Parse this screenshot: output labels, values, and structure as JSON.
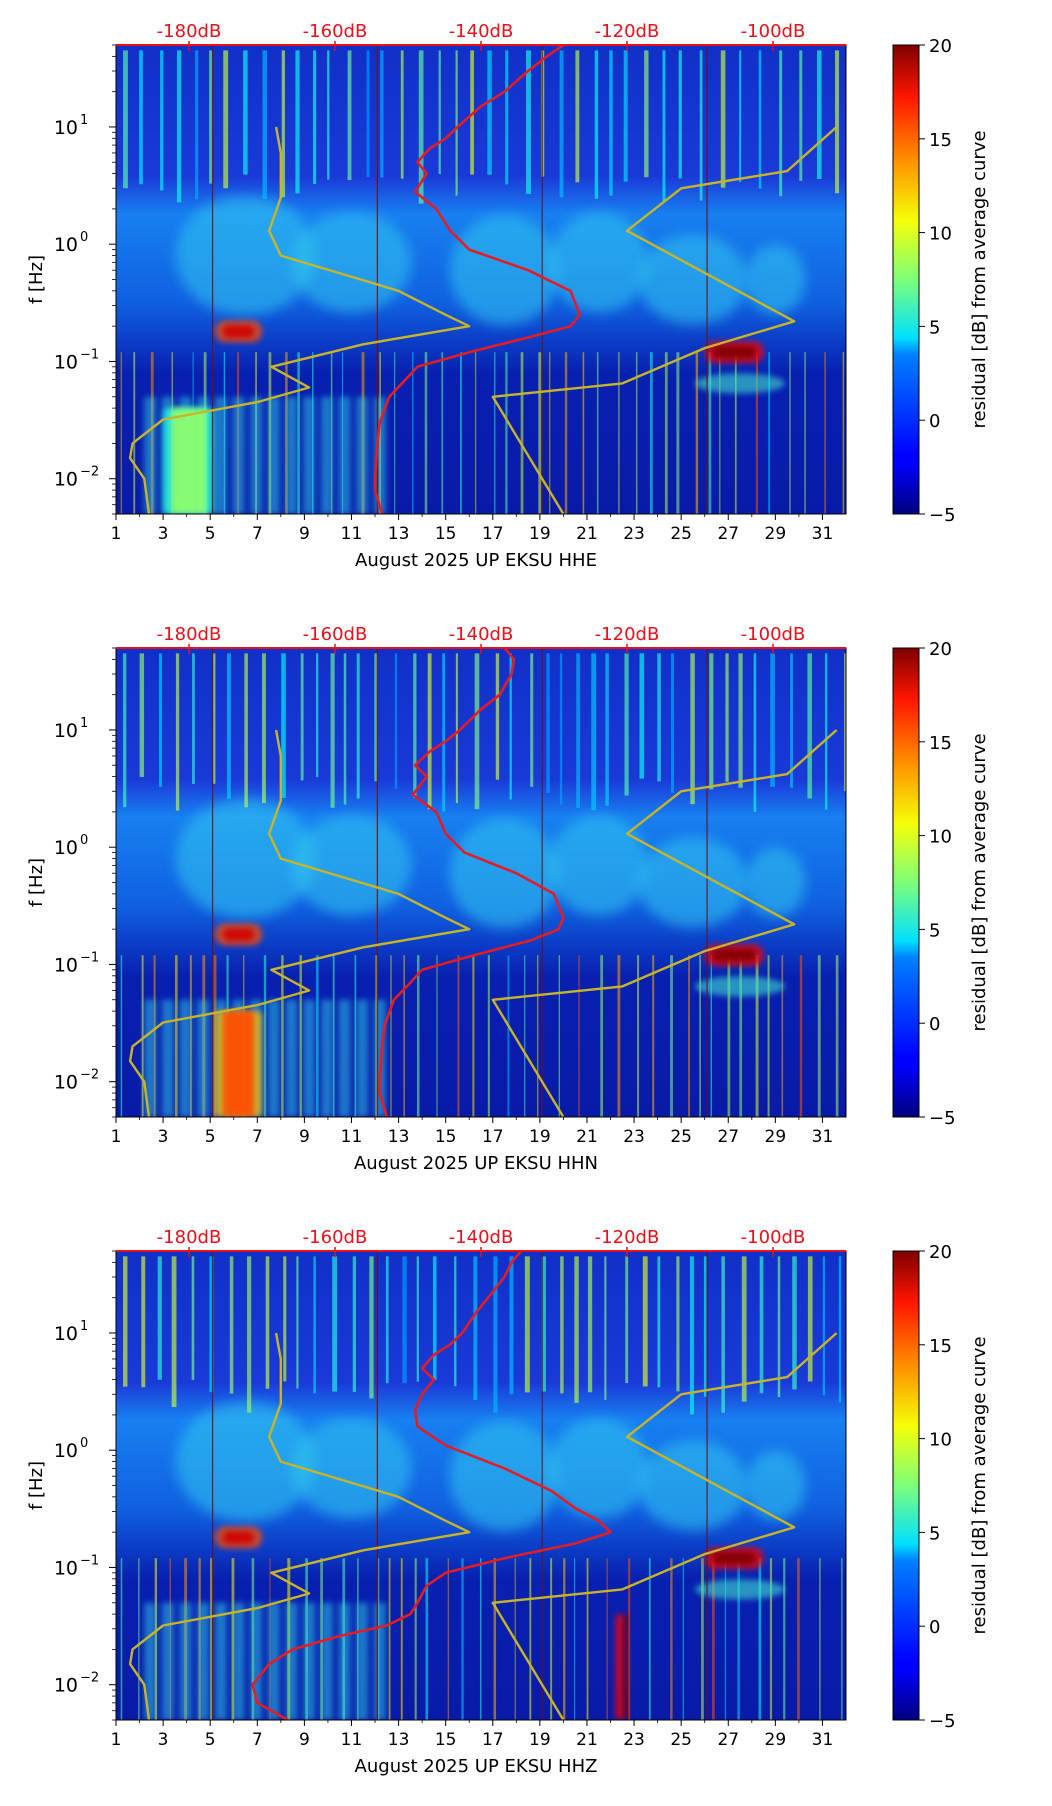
{
  "figure": {
    "colorbar": {
      "label": "residual [dB] from average curve",
      "ticks": [
        "20",
        "15",
        "10",
        "5",
        "0",
        "−5"
      ],
      "tick_values": [
        20,
        15,
        10,
        5,
        0,
        -5
      ],
      "range": [
        -5,
        20
      ],
      "colormap": "jet"
    },
    "y_axis": {
      "label": "f [Hz]",
      "scale": "log",
      "range": [
        0.005,
        50
      ],
      "ticks": [
        {
          "base": "10",
          "exp": "1",
          "value": 10
        },
        {
          "base": "10",
          "exp": "0",
          "value": 1
        },
        {
          "base": "10",
          "exp": "−1",
          "value": 0.1
        },
        {
          "base": "10",
          "exp": "−2",
          "value": 0.01
        }
      ]
    },
    "x_axis": {
      "range": [
        1,
        32
      ],
      "tick_labels": [
        "1",
        "3",
        "5",
        "7",
        "9",
        "11",
        "13",
        "15",
        "17",
        "19",
        "21",
        "23",
        "25",
        "27",
        "29",
        "31"
      ],
      "tick_values": [
        1,
        3,
        5,
        7,
        9,
        11,
        13,
        15,
        17,
        19,
        21,
        23,
        25,
        27,
        29,
        31
      ]
    },
    "top_axis": {
      "color": "#e8101a",
      "labels": [
        "-180dB",
        "-160dB",
        "-140dB",
        "-120dB",
        "-100dB"
      ],
      "label_positions_day": [
        4.1,
        10.3,
        16.5,
        22.7,
        28.9
      ]
    }
  },
  "chart_data": [
    {
      "type": "heatmap",
      "channel": "HHE",
      "xlabel": "August 2025 UP EKSU  HHE",
      "ylabel": "f [Hz]",
      "yscale": "log",
      "xlim": [
        1,
        32
      ],
      "ylim": [
        0.005,
        50
      ],
      "colorbar_range": [
        -5,
        20
      ],
      "notable_features": [
        {
          "x_day": [
            5.2,
            7.2
          ],
          "f_hz": 0.18,
          "residual_db": 18
        },
        {
          "x_day": [
            26.0,
            28.5
          ],
          "f_hz": 0.12,
          "residual_db": 20
        },
        {
          "x_day": [
            3.0,
            5.2
          ],
          "f_hz": 0.01,
          "residual_db": 8
        }
      ],
      "series": [
        {
          "name": "red dB curve (top axis)",
          "color": "#e51c23",
          "points": [
            [
              12.3,
              0.005
            ],
            [
              12.0,
              0.008
            ],
            [
              12.0,
              0.01
            ],
            [
              12.1,
              0.02
            ],
            [
              12.2,
              0.03
            ],
            [
              12.6,
              0.05
            ],
            [
              13.3,
              0.07
            ],
            [
              13.8,
              0.09
            ],
            [
              16.0,
              0.12
            ],
            [
              18.5,
              0.16
            ],
            [
              20.3,
              0.2
            ],
            [
              20.7,
              0.25
            ],
            [
              20.3,
              0.4
            ],
            [
              18.5,
              0.6
            ],
            [
              16.0,
              0.9
            ],
            [
              15.2,
              1.3
            ],
            [
              14.6,
              2.0
            ],
            [
              13.7,
              2.8
            ],
            [
              14.2,
              4.0
            ],
            [
              13.8,
              5.0
            ],
            [
              14.3,
              6.5
            ],
            [
              15.0,
              8.0
            ],
            [
              15.5,
              10.0
            ],
            [
              16.5,
              15.0
            ],
            [
              17.5,
              20.0
            ],
            [
              18.5,
              30.0
            ],
            [
              19.3,
              40.0
            ],
            [
              20.0,
              50.0
            ]
          ]
        },
        {
          "name": "yellow reference curve 1",
          "color": "#c8b428",
          "points": [
            [
              2.4,
              0.005
            ],
            [
              2.2,
              0.01
            ],
            [
              1.6,
              0.015
            ],
            [
              1.7,
              0.02
            ],
            [
              3.0,
              0.032
            ],
            [
              7.0,
              0.045
            ],
            [
              9.2,
              0.06
            ],
            [
              7.6,
              0.09
            ],
            [
              11.5,
              0.14
            ],
            [
              16.0,
              0.2
            ],
            [
              15.0,
              0.25
            ],
            [
              13.0,
              0.4
            ],
            [
              8.0,
              0.8
            ],
            [
              7.5,
              1.3
            ],
            [
              8.0,
              2.5
            ],
            [
              8.0,
              6.0
            ],
            [
              7.8,
              10.0
            ]
          ]
        },
        {
          "name": "yellow reference curve 2",
          "color": "#c8b428",
          "points": [
            [
              20.0,
              0.005
            ],
            [
              17.0,
              0.05
            ],
            [
              22.5,
              0.065
            ],
            [
              26.0,
              0.13
            ],
            [
              29.8,
              0.22
            ],
            [
              22.7,
              1.3
            ],
            [
              25.0,
              3.0
            ],
            [
              29.5,
              4.2
            ],
            [
              31.6,
              10.0
            ]
          ]
        }
      ]
    },
    {
      "type": "heatmap",
      "channel": "HHN",
      "xlabel": "August 2025 UP EKSU  HHN",
      "ylabel": "f [Hz]",
      "yscale": "log",
      "xlim": [
        1,
        32
      ],
      "ylim": [
        0.005,
        50
      ],
      "colorbar_range": [
        -5,
        20
      ],
      "notable_features": [
        {
          "x_day": [
            5.2,
            7.2
          ],
          "f_hz": 0.18,
          "residual_db": 18
        },
        {
          "x_day": [
            26.0,
            28.5
          ],
          "f_hz": 0.12,
          "residual_db": 20
        },
        {
          "x_day": [
            5.2,
            7.2
          ],
          "f_hz": 0.015,
          "residual_db": 15
        }
      ],
      "series": [
        {
          "name": "red dB curve (top axis)",
          "color": "#e51c23",
          "points": [
            [
              12.5,
              0.005
            ],
            [
              12.2,
              0.008
            ],
            [
              12.2,
              0.01
            ],
            [
              12.3,
              0.02
            ],
            [
              12.4,
              0.03
            ],
            [
              12.8,
              0.05
            ],
            [
              13.5,
              0.07
            ],
            [
              14.0,
              0.09
            ],
            [
              16.2,
              0.12
            ],
            [
              18.6,
              0.16
            ],
            [
              19.8,
              0.2
            ],
            [
              20.0,
              0.25
            ],
            [
              19.6,
              0.4
            ],
            [
              18.0,
              0.6
            ],
            [
              15.8,
              0.9
            ],
            [
              15.0,
              1.3
            ],
            [
              14.6,
              2.0
            ],
            [
              13.6,
              2.8
            ],
            [
              14.2,
              4.0
            ],
            [
              13.7,
              5.0
            ],
            [
              14.3,
              6.5
            ],
            [
              15.0,
              8.0
            ],
            [
              15.6,
              10.0
            ],
            [
              16.5,
              15.0
            ],
            [
              17.3,
              20.0
            ],
            [
              17.8,
              30.0
            ],
            [
              17.9,
              40.0
            ],
            [
              17.5,
              50.0
            ]
          ]
        },
        {
          "name": "yellow reference curve 1",
          "color": "#c8b428",
          "points": [
            [
              2.4,
              0.005
            ],
            [
              2.2,
              0.01
            ],
            [
              1.6,
              0.015
            ],
            [
              1.7,
              0.02
            ],
            [
              3.0,
              0.032
            ],
            [
              7.0,
              0.045
            ],
            [
              9.2,
              0.06
            ],
            [
              7.6,
              0.09
            ],
            [
              11.5,
              0.14
            ],
            [
              16.0,
              0.2
            ],
            [
              15.0,
              0.25
            ],
            [
              13.0,
              0.4
            ],
            [
              8.0,
              0.8
            ],
            [
              7.5,
              1.3
            ],
            [
              8.0,
              2.5
            ],
            [
              8.0,
              6.0
            ],
            [
              7.8,
              10.0
            ]
          ]
        },
        {
          "name": "yellow reference curve 2",
          "color": "#c8b428",
          "points": [
            [
              20.0,
              0.005
            ],
            [
              17.0,
              0.05
            ],
            [
              22.5,
              0.065
            ],
            [
              26.0,
              0.13
            ],
            [
              29.8,
              0.22
            ],
            [
              22.7,
              1.3
            ],
            [
              25.0,
              3.0
            ],
            [
              29.5,
              4.2
            ],
            [
              31.6,
              10.0
            ]
          ]
        }
      ]
    },
    {
      "type": "heatmap",
      "channel": "HHZ",
      "xlabel": "August 2025 UP EKSU  HHZ",
      "ylabel": "f [Hz]",
      "yscale": "log",
      "xlim": [
        1,
        32
      ],
      "ylim": [
        0.005,
        50
      ],
      "colorbar_range": [
        -5,
        20
      ],
      "notable_features": [
        {
          "x_day": [
            5.2,
            7.2
          ],
          "f_hz": 0.18,
          "residual_db": 18
        },
        {
          "x_day": [
            26.0,
            28.5
          ],
          "f_hz": 0.12,
          "residual_db": 20
        },
        {
          "x_day": [
            22.2,
            22.6
          ],
          "f_hz": 0.01,
          "residual_db": 20
        }
      ],
      "series": [
        {
          "name": "red dB curve (top axis)",
          "color": "#e51c23",
          "points": [
            [
              8.3,
              0.005
            ],
            [
              7.0,
              0.007
            ],
            [
              6.8,
              0.01
            ],
            [
              7.5,
              0.015
            ],
            [
              8.5,
              0.02
            ],
            [
              10.5,
              0.026
            ],
            [
              12.5,
              0.032
            ],
            [
              13.5,
              0.04
            ],
            [
              13.8,
              0.05
            ],
            [
              14.2,
              0.07
            ],
            [
              15.0,
              0.09
            ],
            [
              17.5,
              0.12
            ],
            [
              20.5,
              0.16
            ],
            [
              22.0,
              0.2
            ],
            [
              21.5,
              0.25
            ],
            [
              20.5,
              0.32
            ],
            [
              19.5,
              0.45
            ],
            [
              17.5,
              0.7
            ],
            [
              15.0,
              1.1
            ],
            [
              13.8,
              1.6
            ],
            [
              13.7,
              2.2
            ],
            [
              14.0,
              3.0
            ],
            [
              14.5,
              4.0
            ],
            [
              14.0,
              5.0
            ],
            [
              14.5,
              6.5
            ],
            [
              15.2,
              8.0
            ],
            [
              15.7,
              10.0
            ],
            [
              16.3,
              15.0
            ],
            [
              16.8,
              20.0
            ],
            [
              17.5,
              30.0
            ],
            [
              17.8,
              40.0
            ],
            [
              18.2,
              50.0
            ]
          ]
        },
        {
          "name": "yellow reference curve 1",
          "color": "#c8b428",
          "points": [
            [
              2.4,
              0.005
            ],
            [
              2.2,
              0.01
            ],
            [
              1.6,
              0.015
            ],
            [
              1.7,
              0.02
            ],
            [
              3.0,
              0.032
            ],
            [
              7.0,
              0.045
            ],
            [
              9.2,
              0.06
            ],
            [
              7.6,
              0.09
            ],
            [
              11.5,
              0.14
            ],
            [
              16.0,
              0.2
            ],
            [
              15.0,
              0.25
            ],
            [
              13.0,
              0.4
            ],
            [
              8.0,
              0.8
            ],
            [
              7.5,
              1.3
            ],
            [
              8.0,
              2.5
            ],
            [
              8.0,
              6.0
            ],
            [
              7.8,
              10.0
            ]
          ]
        },
        {
          "name": "yellow reference curve 2",
          "color": "#c8b428",
          "points": [
            [
              20.0,
              0.005
            ],
            [
              17.0,
              0.05
            ],
            [
              22.5,
              0.065
            ],
            [
              26.0,
              0.13
            ],
            [
              29.8,
              0.22
            ],
            [
              22.7,
              1.3
            ],
            [
              25.0,
              3.0
            ],
            [
              29.5,
              4.2
            ],
            [
              31.6,
              10.0
            ]
          ]
        }
      ]
    }
  ]
}
